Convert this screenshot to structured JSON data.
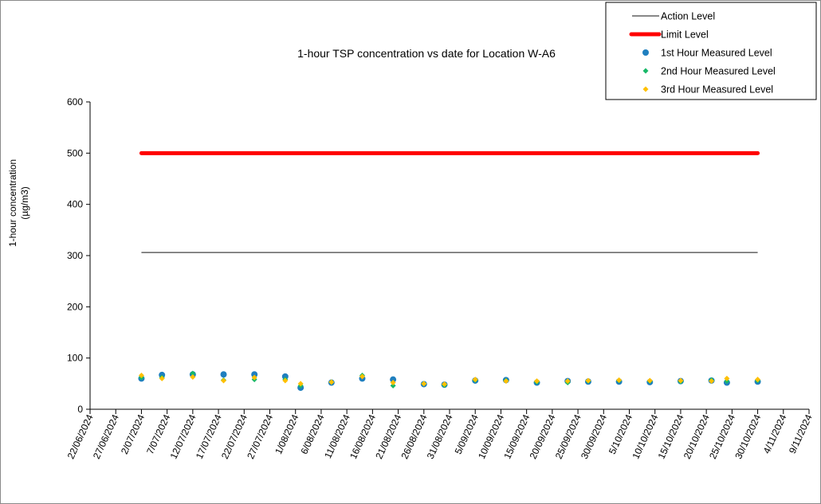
{
  "chart_data": {
    "type": "scatter",
    "title": "1-hour TSP concentration vs date for Location  W-A6",
    "xlabel": "",
    "ylabel": "1-hour concentration (µg/m3)",
    "ylabel_lines": [
      "1-hour concentration",
      "(µg/m3)"
    ],
    "ylim": [
      0,
      600
    ],
    "y_ticks": [
      0,
      100,
      200,
      300,
      400,
      500,
      600
    ],
    "xlim": [
      "2024-06-22",
      "2024-11-09"
    ],
    "x_ticks": [
      "22/06/2024",
      "27/06/2024",
      "2/07/2024",
      "7/07/2024",
      "12/07/2024",
      "17/07/2024",
      "22/07/2024",
      "27/07/2024",
      "1/08/2024",
      "6/08/2024",
      "11/08/2024",
      "16/08/2024",
      "21/08/2024",
      "26/08/2024",
      "31/08/2024",
      "5/09/2024",
      "10/09/2024",
      "15/09/2024",
      "20/09/2024",
      "25/09/2024",
      "30/09/2024",
      "5/10/2024",
      "10/10/2024",
      "15/10/2024",
      "20/10/2024",
      "25/10/2024",
      "30/10/2024",
      "4/11/2024",
      "9/11/2024"
    ],
    "grid": false,
    "legend_position": "top-right",
    "reference_lines": [
      {
        "name": "Action Level",
        "value": 306,
        "x_range": [
          "2024-07-02",
          "2024-10-30"
        ],
        "color": "#404040"
      },
      {
        "name": "Limit Level",
        "value": 500,
        "x_range": [
          "2024-07-02",
          "2024-10-30"
        ],
        "color": "#ff0000"
      }
    ],
    "series": [
      {
        "name": "1st Hour Measured Level",
        "color": "#1f7fbf",
        "marker": "circle",
        "x": [
          "2024-07-02",
          "2024-07-06",
          "2024-07-12",
          "2024-07-18",
          "2024-07-24",
          "2024-07-30",
          "2024-08-02",
          "2024-08-08",
          "2024-08-14",
          "2024-08-20",
          "2024-08-26",
          "2024-08-30",
          "2024-09-05",
          "2024-09-11",
          "2024-09-17",
          "2024-09-23",
          "2024-09-27",
          "2024-10-03",
          "2024-10-09",
          "2024-10-15",
          "2024-10-21",
          "2024-10-24",
          "2024-10-30"
        ],
        "values": [
          60,
          67,
          68,
          68,
          68,
          64,
          42,
          52,
          60,
          58,
          49,
          48,
          56,
          57,
          52,
          55,
          54,
          54,
          53,
          55,
          56,
          52,
          54
        ]
      },
      {
        "name": "2nd Hour Measured Level",
        "color": "#18b868",
        "marker": "diamond",
        "x": [
          "2024-07-02",
          "2024-07-06",
          "2024-07-12",
          "2024-07-18",
          "2024-07-24",
          "2024-07-30",
          "2024-08-02",
          "2024-08-08",
          "2024-08-14",
          "2024-08-20",
          "2024-08-26",
          "2024-08-30",
          "2024-09-05",
          "2024-09-11",
          "2024-09-17",
          "2024-09-23",
          "2024-09-27",
          "2024-10-03",
          "2024-10-09",
          "2024-10-15",
          "2024-10-21",
          "2024-10-24",
          "2024-10-30"
        ],
        "values": [
          62,
          62,
          70,
          57,
          58,
          58,
          46,
          53,
          66,
          46,
          50,
          47,
          57,
          56,
          53,
          52,
          55,
          56,
          55,
          54,
          57,
          55,
          56
        ]
      },
      {
        "name": "3rd Hour Measured Level",
        "color": "#ffc000",
        "marker": "diamond",
        "x": [
          "2024-07-02",
          "2024-07-06",
          "2024-07-12",
          "2024-07-18",
          "2024-07-24",
          "2024-07-30",
          "2024-08-02",
          "2024-08-08",
          "2024-08-14",
          "2024-08-20",
          "2024-08-26",
          "2024-08-30",
          "2024-09-05",
          "2024-09-11",
          "2024-09-17",
          "2024-09-23",
          "2024-09-27",
          "2024-10-03",
          "2024-10-09",
          "2024-10-15",
          "2024-10-21",
          "2024-10-24",
          "2024-10-30"
        ],
        "values": [
          66,
          60,
          63,
          56,
          62,
          56,
          50,
          53,
          64,
          52,
          50,
          49,
          58,
          55,
          55,
          55,
          56,
          57,
          56,
          56,
          55,
          60,
          58
        ]
      }
    ]
  }
}
